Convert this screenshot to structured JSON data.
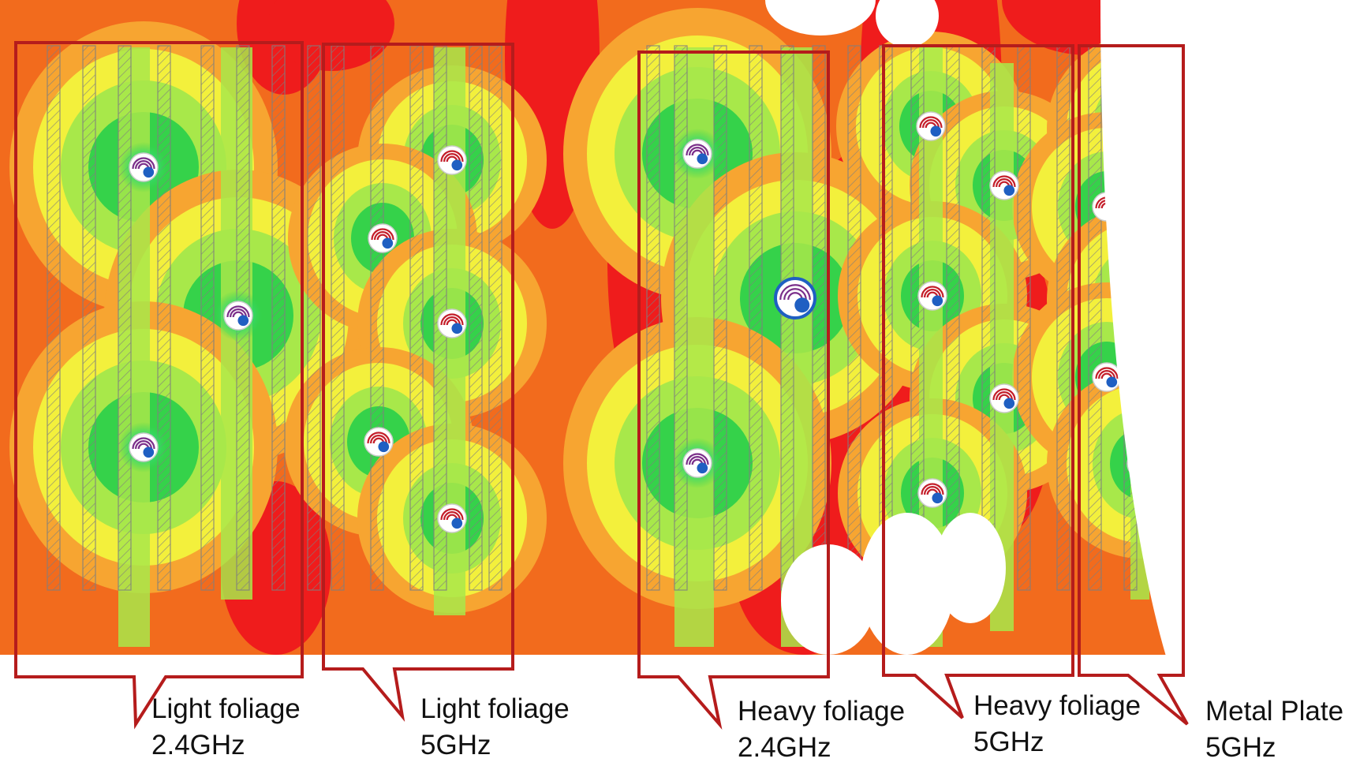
{
  "colors": {
    "background": "#ffffff",
    "weak_signal": "#ef1c1c",
    "low_signal": "#f26b1d",
    "mid_low_signal": "#f7a531",
    "mid_signal": "#f3f03c",
    "good_signal": "#a8e84a",
    "strong_signal": "#35d24a",
    "peak_signal": "#29e0c6",
    "callout_outline": "#b51c1c",
    "rack_hatch": "#7f7f7f",
    "ap_icon_24ghz": "#7b2f8a",
    "ap_icon_5ghz": "#c41e2a",
    "ap_icon_badge": "#1f5fc2"
  },
  "icons": {
    "access_point": "access-point-icon"
  },
  "callouts": [
    {
      "id": "light-24",
      "line1": "Light foliage",
      "line2": "2.4GHz"
    },
    {
      "id": "light-5",
      "line1": "Light foliage",
      "line2": "5GHz"
    },
    {
      "id": "heavy-24",
      "line1": "Heavy foliage",
      "line2": "2.4GHz"
    },
    {
      "id": "heavy-5",
      "line1": "Heavy foliage",
      "line2": "5GHz"
    },
    {
      "id": "metal-5",
      "line1": "Metal Plate",
      "line2": "5GHz"
    }
  ]
}
